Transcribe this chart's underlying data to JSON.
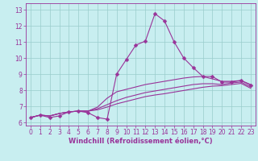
{
  "xlabel": "Windchill (Refroidissement éolien,°C)",
  "bg_color": "#c8eef0",
  "line_color": "#993399",
  "grid_color": "#99cccc",
  "xlim": [
    -0.5,
    23.5
  ],
  "ylim": [
    5.8,
    13.4
  ],
  "xticks": [
    0,
    1,
    2,
    3,
    4,
    5,
    6,
    7,
    8,
    9,
    10,
    11,
    12,
    13,
    14,
    15,
    16,
    17,
    18,
    19,
    20,
    21,
    22,
    23
  ],
  "yticks": [
    6,
    7,
    8,
    9,
    10,
    11,
    12,
    13
  ],
  "series": [
    [
      6.3,
      6.45,
      6.3,
      6.4,
      6.65,
      6.7,
      6.6,
      6.3,
      6.2,
      9.0,
      9.9,
      10.8,
      11.05,
      12.75,
      12.3,
      11.0,
      10.0,
      9.4,
      8.85,
      8.85,
      8.5,
      8.5,
      8.6,
      8.3
    ],
    [
      6.3,
      6.45,
      6.4,
      6.55,
      6.65,
      6.7,
      6.7,
      6.95,
      7.5,
      7.9,
      8.05,
      8.2,
      8.35,
      8.45,
      8.55,
      8.65,
      8.75,
      8.82,
      8.85,
      8.7,
      8.55,
      8.55,
      8.6,
      8.35
    ],
    [
      6.3,
      6.45,
      6.4,
      6.55,
      6.65,
      6.7,
      6.7,
      6.85,
      7.1,
      7.35,
      7.55,
      7.7,
      7.85,
      7.95,
      8.05,
      8.15,
      8.25,
      8.35,
      8.4,
      8.4,
      8.35,
      8.45,
      8.5,
      8.2
    ],
    [
      6.3,
      6.45,
      6.4,
      6.55,
      6.65,
      6.7,
      6.7,
      6.78,
      6.95,
      7.15,
      7.3,
      7.45,
      7.6,
      7.7,
      7.78,
      7.88,
      7.98,
      8.08,
      8.18,
      8.25,
      8.28,
      8.35,
      8.42,
      8.12
    ]
  ],
  "tick_fontsize": 5.5,
  "xlabel_fontsize": 6.0
}
